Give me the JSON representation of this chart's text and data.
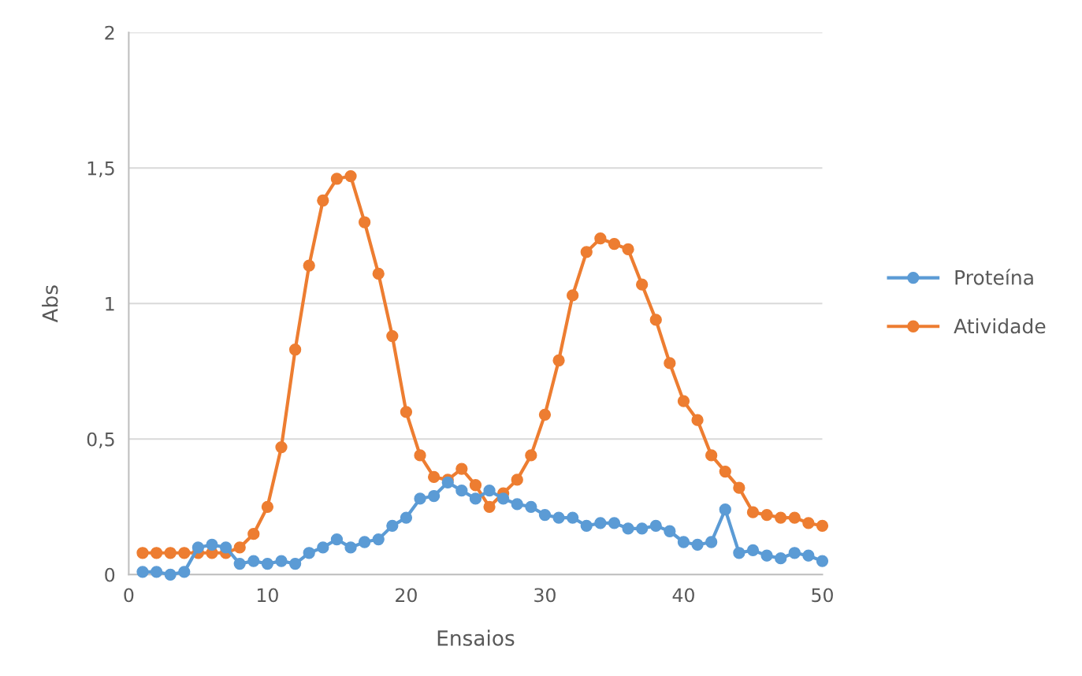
{
  "chart_data": {
    "type": "line",
    "xlabel": "Ensaios",
    "ylabel": "Abs",
    "x": [
      1,
      2,
      3,
      4,
      5,
      6,
      7,
      8,
      9,
      10,
      11,
      12,
      13,
      14,
      15,
      16,
      17,
      18,
      19,
      20,
      21,
      22,
      23,
      24,
      25,
      26,
      27,
      28,
      29,
      30,
      31,
      32,
      33,
      34,
      35,
      36,
      37,
      38,
      39,
      40,
      41,
      42,
      43,
      44,
      45,
      46,
      47,
      48,
      49,
      50
    ],
    "series": [
      {
        "name": "Proteína",
        "color": "#5b9bd5",
        "values": [
          0.01,
          0.01,
          0.0,
          0.01,
          0.1,
          0.11,
          0.1,
          0.04,
          0.05,
          0.04,
          0.05,
          0.04,
          0.08,
          0.1,
          0.13,
          0.1,
          0.12,
          0.13,
          0.18,
          0.21,
          0.28,
          0.29,
          0.34,
          0.31,
          0.28,
          0.31,
          0.28,
          0.26,
          0.25,
          0.22,
          0.21,
          0.21,
          0.18,
          0.19,
          0.19,
          0.17,
          0.17,
          0.18,
          0.16,
          0.12,
          0.11,
          0.12,
          0.24,
          0.08,
          0.09,
          0.07,
          0.06,
          0.08,
          0.07,
          0.05
        ]
      },
      {
        "name": "Atividade",
        "color": "#ed7d31",
        "values": [
          0.08,
          0.08,
          0.08,
          0.08,
          0.08,
          0.08,
          0.08,
          0.1,
          0.15,
          0.25,
          0.47,
          0.83,
          1.14,
          1.38,
          1.46,
          1.47,
          1.3,
          1.11,
          0.88,
          0.6,
          0.44,
          0.36,
          0.35,
          0.39,
          0.33,
          0.25,
          0.3,
          0.35,
          0.44,
          0.59,
          0.79,
          1.03,
          1.19,
          1.24,
          1.22,
          1.2,
          1.07,
          0.94,
          0.78,
          0.64,
          0.57,
          0.44,
          0.38,
          0.32,
          0.23,
          0.22,
          0.21,
          0.21,
          0.19,
          0.18
        ]
      }
    ],
    "xlim": [
      0,
      50
    ],
    "xticks": [
      0,
      10,
      20,
      30,
      40,
      50
    ],
    "ylim": [
      0,
      2
    ],
    "yticks": [
      0,
      {
        "value": 0.5,
        "label": "0,5"
      },
      1,
      {
        "value": 1.5,
        "label": "1,5"
      },
      2
    ],
    "grid": "y",
    "legend": "right",
    "marker": "circle",
    "line_style": "solid"
  }
}
